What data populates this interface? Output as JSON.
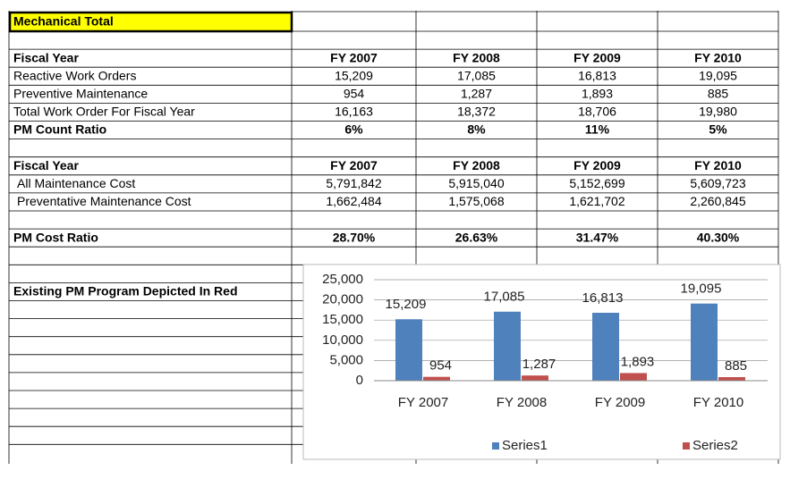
{
  "table": {
    "title": "Mechanical Total",
    "rows": [
      [
        "Fiscal Year",
        "FY 2007",
        "FY 2008",
        "FY 2009",
        "FY 2010"
      ],
      [
        "Reactive Work Orders",
        "15,209",
        "17,085",
        "16,813",
        "19,095"
      ],
      [
        "Preventive Maintenance",
        "954",
        "1,287",
        "1,893",
        "885"
      ],
      [
        "Total Work Order For Fiscal Year",
        "16,163",
        "18,372",
        "18,706",
        "19,980"
      ],
      [
        "PM Count Ratio",
        "6%",
        "8%",
        "11%",
        "5%"
      ],
      [
        "Fiscal Year",
        "FY 2007",
        "FY 2008",
        "FY 2009",
        "FY 2010"
      ],
      [
        "All Maintenance Cost",
        "5,791,842",
        "5,915,040",
        "5,152,699",
        "5,609,723"
      ],
      [
        "Preventative Maintenance Cost",
        "1,662,484",
        "1,575,068",
        "1,621,702",
        "2,260,845"
      ],
      [
        "PM Cost Ratio",
        "28.70%",
        "26.63%",
        "31.47%",
        "40.30%"
      ]
    ],
    "note": "Existing PM Program Depicted In Red"
  },
  "chart_data": {
    "type": "bar",
    "categories": [
      "FY 2007",
      "FY 2008",
      "FY 2009",
      "FY 2010"
    ],
    "series": [
      {
        "name": "Series1",
        "color": "#4f81bd",
        "values": [
          15209,
          17085,
          16813,
          19095
        ],
        "value_labels": [
          "15,209",
          "17,085",
          "16,813",
          "19,095"
        ]
      },
      {
        "name": "Series2",
        "color": "#c0504d",
        "values": [
          954,
          1287,
          1893,
          885
        ],
        "value_labels": [
          "954",
          "1,287",
          "1,893",
          "885"
        ]
      }
    ],
    "ylim": [
      0,
      25000
    ],
    "yticks": [
      0,
      {
        "value": 5000,
        "label": "5,000"
      },
      {
        "value": 10000,
        "label": "10,000"
      },
      {
        "value": 15000,
        "label": "15,000"
      },
      {
        "value": 20000,
        "label": "20,000"
      },
      {
        "value": 25000,
        "label": "25,000"
      }
    ],
    "grid": true,
    "legend": "bottom"
  }
}
